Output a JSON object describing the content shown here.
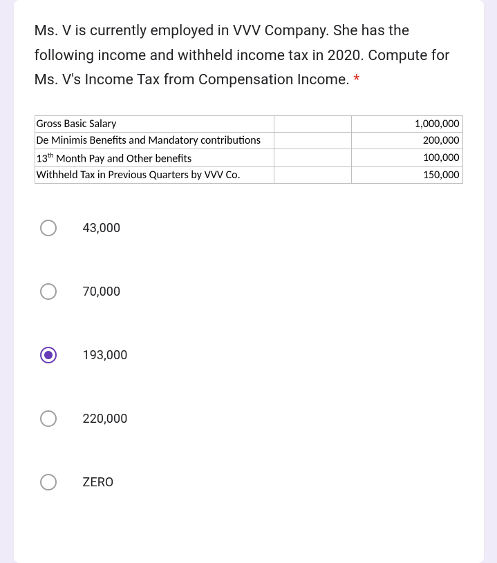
{
  "question": {
    "text": "Ms. V is currently employed in VVV Company. She has the following income and withheld income tax in 2020. Compute for Ms. V's Income Tax from Compensation Income.",
    "required": true
  },
  "table": {
    "rows": [
      {
        "label": "Gross Basic Salary",
        "has_sup": false,
        "value": "1,000,000"
      },
      {
        "label": "De Minimis Benefits and Mandatory contributions",
        "has_sup": false,
        "value": "200,000"
      },
      {
        "label": "13",
        "sup": "th",
        "label_after": " Month Pay and Other benefits",
        "has_sup": true,
        "value": "100,000"
      },
      {
        "label": "Withheld Tax  in Previous Quarters by VVV Co.",
        "has_sup": false,
        "value": "150,000"
      }
    ]
  },
  "options": [
    {
      "label": "43,000",
      "selected": false
    },
    {
      "label": "70,000",
      "selected": false
    },
    {
      "label": "193,000",
      "selected": true
    },
    {
      "label": "220,000",
      "selected": false
    },
    {
      "label": "ZERO",
      "selected": false
    }
  ],
  "colors": {
    "page_bg": "#f0ebf8",
    "card_bg": "#ffffff",
    "text": "#202124",
    "required": "#d93025",
    "radio_unselected": "#9e9e9e",
    "radio_selected": "#673ab7",
    "table_border": "#bfbfbf"
  }
}
